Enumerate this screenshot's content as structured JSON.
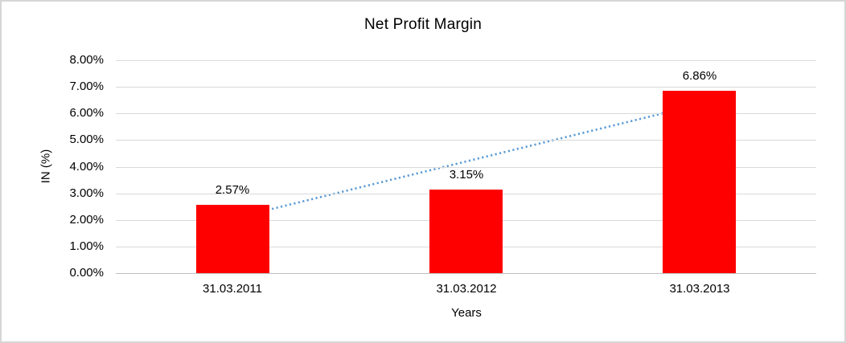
{
  "window": {
    "background": "#ffffff",
    "border_color": "#d6d6d6"
  },
  "chart_data": {
    "type": "bar",
    "title": "Net Profit Margin",
    "xlabel": "Years",
    "ylabel": "IN (%)",
    "categories": [
      "31.03.2011",
      "31.03.2012",
      "31.03.2013"
    ],
    "values": [
      2.57,
      3.15,
      6.86
    ],
    "value_labels": [
      "2.57%",
      "3.15%",
      "6.86%"
    ],
    "ylim": [
      0,
      8
    ],
    "ytick_step": 1,
    "ytick_labels": [
      "0.00%",
      "1.00%",
      "2.00%",
      "3.00%",
      "4.00%",
      "5.00%",
      "6.00%",
      "7.00%",
      "8.00%"
    ],
    "grid": true,
    "legend": "none",
    "bar_color": "#ff0000",
    "gridline_color": "#d9d9d9",
    "axis_line_color": "#bfbfbf",
    "text_color": "#000000",
    "trendline": {
      "type": "linear",
      "style": "dotted",
      "color": "#5b9bd5",
      "start_value": 2.05,
      "end_value": 6.34
    }
  }
}
